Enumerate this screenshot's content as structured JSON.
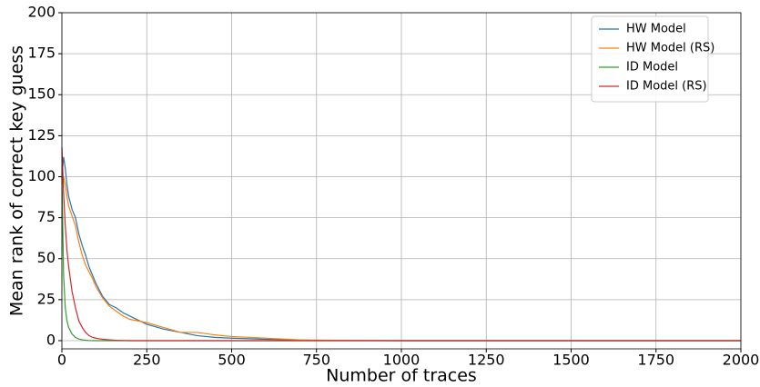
{
  "chart_data": {
    "type": "line",
    "x_label": "Number of traces",
    "y_label": "Mean rank of correct key guess",
    "x": [
      0,
      5,
      10,
      15,
      20,
      30,
      40,
      50,
      60,
      70,
      80,
      90,
      100,
      120,
      140,
      160,
      180,
      200,
      250,
      300,
      350,
      400,
      450,
      500,
      600,
      700,
      800,
      1000,
      1500,
      2000
    ],
    "series": [
      {
        "name": "HW Model",
        "color": "#1f77b4",
        "values": [
          100,
          112,
          105,
          95,
          88,
          80,
          75,
          65,
          58,
          52,
          45,
          40,
          35,
          27,
          22,
          20,
          17,
          15,
          10,
          7,
          5,
          3,
          2,
          1.5,
          0.8,
          0.3,
          0.1,
          0,
          0,
          0
        ]
      },
      {
        "name": "HW Model (RS)",
        "color": "#ff7f0e",
        "values": [
          95,
          100,
          95,
          88,
          82,
          76,
          70,
          60,
          52,
          46,
          42,
          38,
          33,
          26,
          21,
          18,
          15,
          13,
          11,
          8,
          5,
          5,
          3.5,
          2.5,
          1.5,
          0.5,
          0.2,
          0,
          0,
          0
        ]
      },
      {
        "name": "ID Model",
        "color": "#2ca02c",
        "values": [
          100,
          40,
          20,
          12,
          8,
          4,
          2,
          1,
          0.5,
          0.3,
          0.1,
          0,
          0,
          0,
          0,
          0,
          0,
          0,
          0,
          0,
          0,
          0,
          0,
          0,
          0,
          0,
          0,
          0,
          0,
          0
        ]
      },
      {
        "name": "ID Model (RS)",
        "color": "#d62728",
        "values": [
          118,
          90,
          70,
          55,
          45,
          30,
          20,
          12,
          8,
          5,
          3,
          2,
          1.5,
          0.8,
          0.5,
          0.2,
          0.1,
          0,
          0,
          0,
          0,
          0,
          0,
          0,
          0,
          0,
          0,
          0,
          0,
          0
        ]
      }
    ],
    "xlim": [
      0,
      2000
    ],
    "xticks": [
      0,
      250,
      500,
      750,
      1000,
      1250,
      1500,
      1750,
      2000
    ],
    "ylim": [
      -5,
      200
    ],
    "yticks": [
      0,
      25,
      50,
      75,
      100,
      125,
      150,
      175,
      200
    ],
    "grid": true,
    "legend": "upper-right"
  }
}
